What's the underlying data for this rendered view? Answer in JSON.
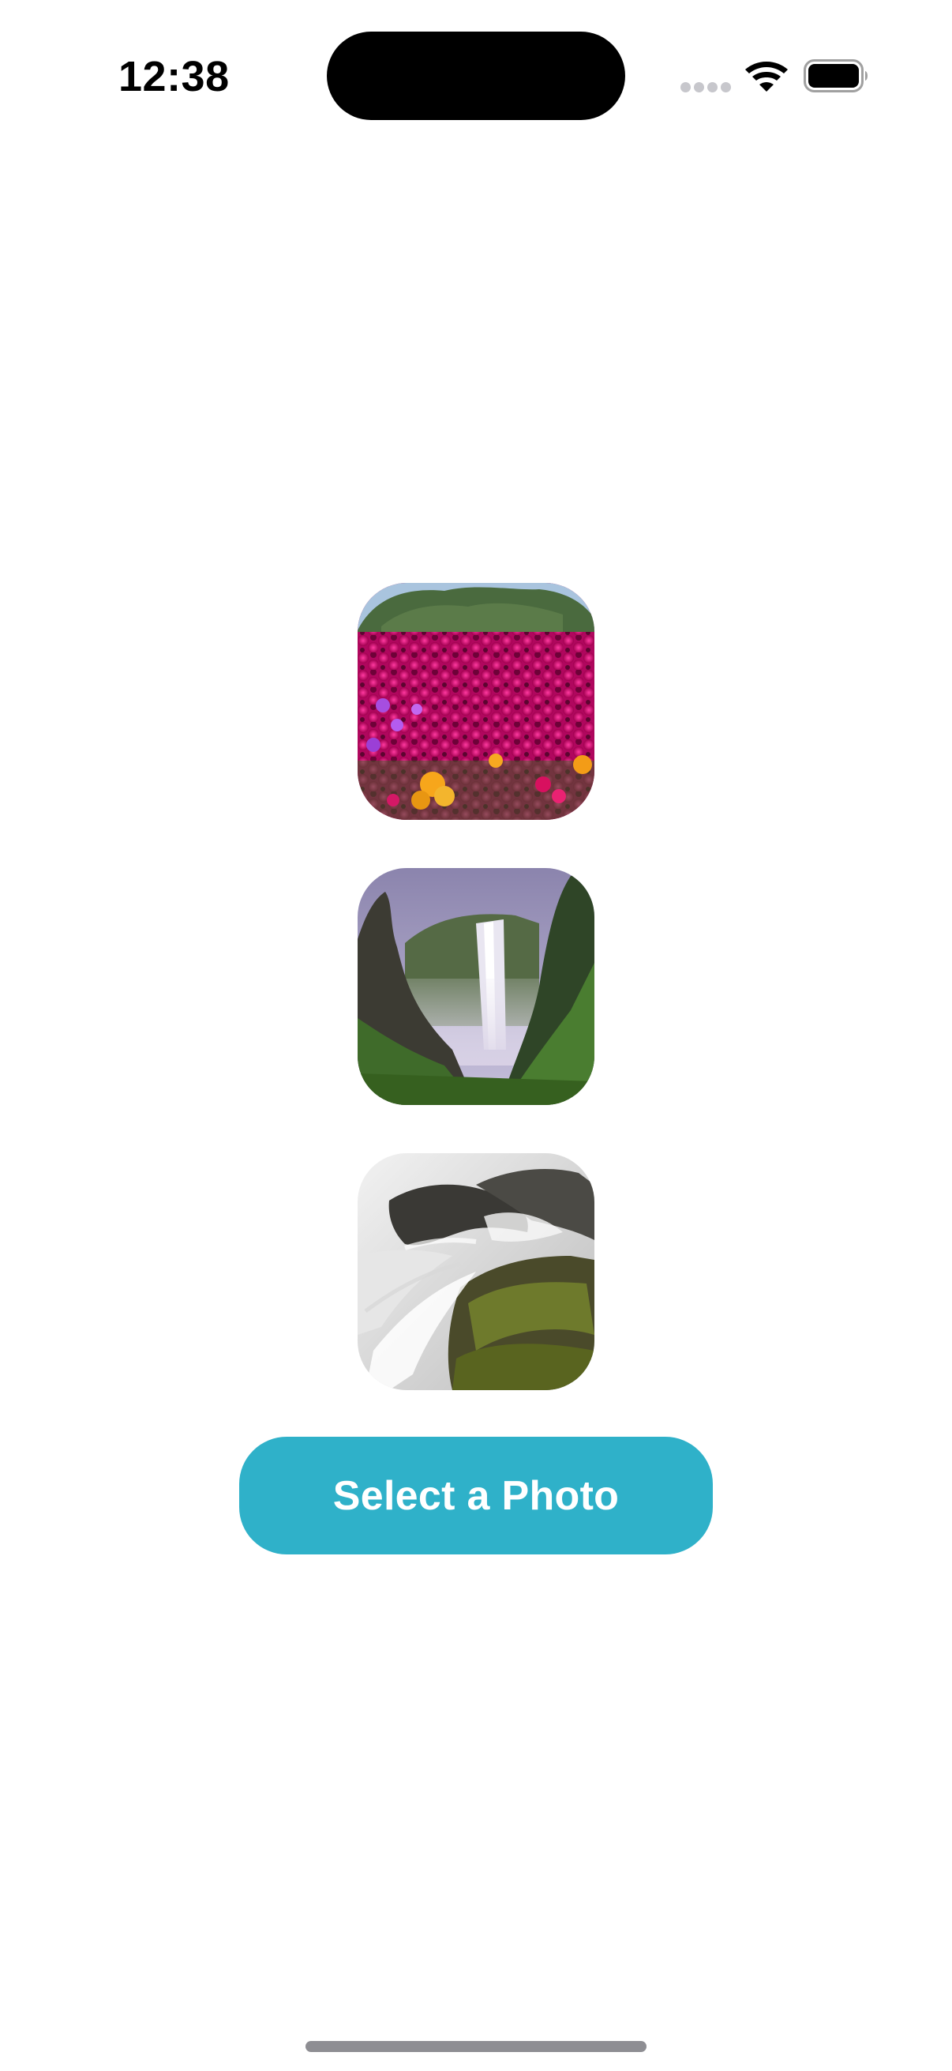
{
  "status_bar": {
    "time": "12:38",
    "icons": [
      "cellular-signal-icon",
      "wifi-icon",
      "battery-icon"
    ]
  },
  "photos": [
    {
      "name": "flower-field-photo",
      "subject": "magenta flower field"
    },
    {
      "name": "waterfall-photo",
      "subject": "waterfall in green valley"
    },
    {
      "name": "rapids-photo",
      "subject": "rapids over mossy rocks"
    }
  ],
  "button": {
    "label": "Select a Photo",
    "background": "#2fb1c9",
    "text_color": "#ffffff"
  },
  "colors": {
    "background": "#ffffff",
    "accent": "#2fb1c9"
  }
}
